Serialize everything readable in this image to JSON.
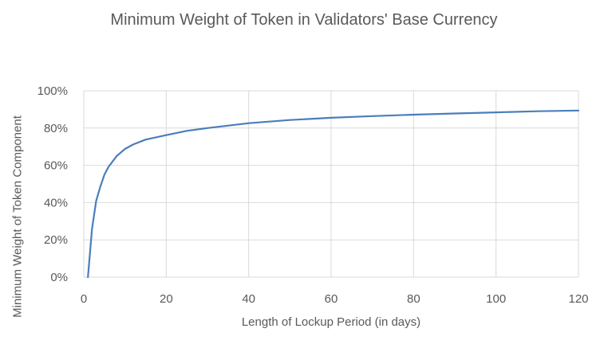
{
  "chart_data": {
    "type": "line",
    "title": "Minimum Weight of Token in Validators' Base Currency",
    "xlabel": "Length of Lockup Period (in days)",
    "ylabel": "Minimum Weight of Token Component",
    "xlim": [
      0,
      120
    ],
    "ylim": [
      0,
      1
    ],
    "x_ticks": [
      0,
      20,
      40,
      60,
      80,
      100,
      120
    ],
    "x_tick_labels": [
      "0",
      "20",
      "40",
      "60",
      "80",
      "100",
      "120"
    ],
    "y_ticks": [
      0,
      0.2,
      0.4,
      0.6,
      0.8,
      1.0
    ],
    "y_tick_labels": [
      "0%",
      "20%",
      "40%",
      "60%",
      "80%",
      "100%"
    ],
    "grid": true,
    "legend": "none",
    "series": [
      {
        "color": "#4a7ebb",
        "x": [
          1,
          2,
          3,
          4,
          5,
          6,
          8,
          10,
          12,
          15,
          20,
          25,
          30,
          40,
          50,
          60,
          70,
          80,
          90,
          100,
          110,
          120
        ],
        "y": [
          0.0,
          0.258,
          0.409,
          0.485,
          0.549,
          0.592,
          0.65,
          0.688,
          0.712,
          0.738,
          0.762,
          0.785,
          0.8,
          0.826,
          0.843,
          0.855,
          0.864,
          0.872,
          0.878,
          0.884,
          0.89,
          0.894
        ]
      }
    ]
  }
}
